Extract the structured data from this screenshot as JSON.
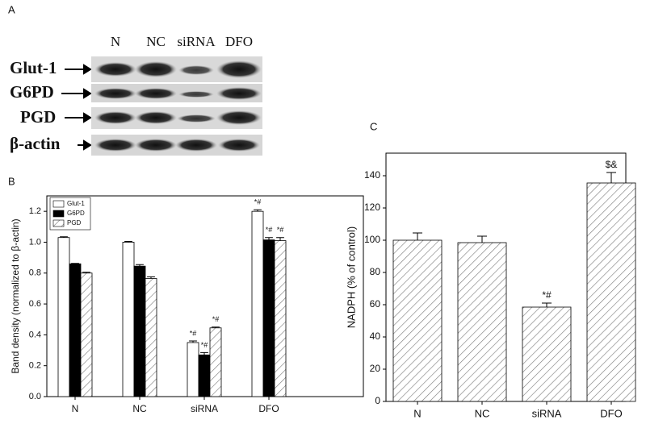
{
  "blot": {
    "panel": "A",
    "lanes": [
      "N",
      "NC",
      "siRNA",
      "DFO"
    ],
    "rows": [
      "Glut-1",
      "G6PD",
      "PGD",
      "β-actin"
    ]
  },
  "chart_data": [
    {
      "type": "bar",
      "panel": "B",
      "ylabel": "Band density (normalized to β-actin)",
      "categories": [
        "N",
        "NC",
        "siRNA",
        "DFO"
      ],
      "series": [
        {
          "name": "Glut-1",
          "color": "#ffffff",
          "hatch": false,
          "values": [
            1.03,
            1.0,
            0.35,
            1.2
          ],
          "errors": [
            0.005,
            0.005,
            0.01,
            0.01
          ],
          "marks": [
            null,
            null,
            "*#",
            "*#"
          ]
        },
        {
          "name": "G6PD",
          "color": "#000000",
          "hatch": false,
          "values": [
            0.86,
            0.845,
            0.27,
            1.015
          ],
          "errors": [
            0.003,
            0.01,
            0.015,
            0.015
          ],
          "marks": [
            null,
            null,
            "*#",
            "*#"
          ]
        },
        {
          "name": "PGD",
          "color": "#ffffff",
          "hatch": true,
          "values": [
            0.8,
            0.765,
            0.445,
            1.01
          ],
          "errors": [
            0.005,
            0.01,
            0.005,
            0.02
          ],
          "marks": [
            null,
            null,
            "*#",
            "*#"
          ]
        }
      ],
      "ylim": [
        0,
        1.3
      ],
      "yticks": [
        {
          "value": 0,
          "label": "0.0"
        },
        0.2,
        0.4,
        0.6,
        0.8,
        {
          "value": 1,
          "label": "1.0"
        },
        1.2
      ],
      "legend": "upper left"
    },
    {
      "type": "bar",
      "panel": "C",
      "ylabel": "NADPH (% of control)",
      "categories": [
        "N",
        "NC",
        "siRNA",
        "DFO"
      ],
      "series": [
        {
          "color": "#ffffff",
          "hatch": true,
          "values": [
            100,
            98.5,
            58.5,
            135.5
          ],
          "errors": [
            4.5,
            4,
            2.5,
            6.5
          ],
          "marks": [
            null,
            null,
            "*#",
            "$&"
          ]
        }
      ],
      "ylim": [
        0,
        154
      ],
      "yticks": [
        0,
        20,
        40,
        60,
        80,
        100,
        120,
        140
      ]
    }
  ]
}
